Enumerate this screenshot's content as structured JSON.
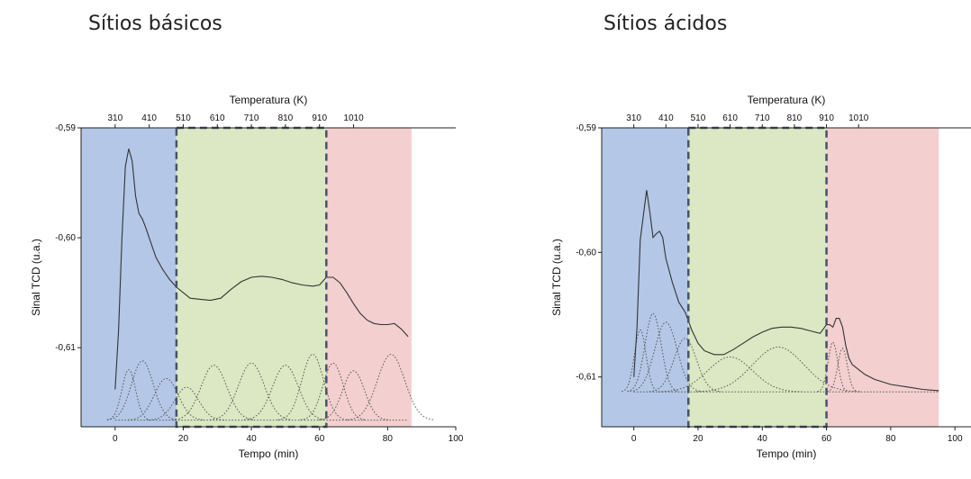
{
  "panels": {
    "left_title": "Sítios básicos",
    "right_title": "Sítios ácidos"
  },
  "colors": {
    "region_low": "#b4c7e7",
    "region_mid": "#dbe8c3",
    "region_high": "#f3cfcf",
    "dashed_box": "#44546a",
    "signal": "#333333",
    "fit": "#555555"
  },
  "chart_data": [
    {
      "type": "line",
      "title": "Sítios básicos",
      "xlabel": "Tempo (min)",
      "ylabel": "Sinal TCD (u.a.)",
      "top_xlabel": "Temperatura (K)",
      "xlim": [
        -10,
        100
      ],
      "ylim": [
        -0.6172,
        -0.59
      ],
      "x_ticks": [
        0,
        20,
        40,
        60,
        80,
        100
      ],
      "x_tick_labels": [
        "0",
        "20",
        "40",
        "60",
        "80",
        "100"
      ],
      "y_ticks": [
        -0.59,
        -0.6,
        -0.61
      ],
      "y_tick_labels": [
        "-0,59",
        "-0,60",
        "-0,61"
      ],
      "top_ticks": [
        0,
        10,
        20,
        30,
        40,
        50,
        60,
        70,
        80
      ],
      "top_tick_labels": [
        "310",
        "410",
        "510",
        "610",
        "710",
        "810",
        "910",
        "1010"
      ],
      "top_tick_positions": [
        0,
        10,
        20,
        30,
        40,
        50,
        60,
        70
      ],
      "regions": [
        {
          "x0": -10,
          "x1": 18,
          "color": "low"
        },
        {
          "x0": 18,
          "x1": 62,
          "color": "mid",
          "dashed": true
        },
        {
          "x0": 62,
          "x1": 87,
          "color": "high"
        }
      ],
      "baseline": -0.6166,
      "series": [
        {
          "kind": "signal",
          "x": [
            0,
            1,
            2,
            3,
            4,
            5,
            6,
            7,
            8,
            9,
            10,
            12,
            14,
            16,
            18,
            20,
            22,
            25,
            28,
            31,
            34,
            37,
            40,
            43,
            46,
            49,
            52,
            55,
            58,
            60,
            62,
            64,
            66,
            68,
            70,
            72,
            74,
            76,
            78,
            80,
            82,
            84,
            86
          ],
          "y": [
            -0.6138,
            -0.6085,
            -0.6,
            -0.5935,
            -0.5919,
            -0.593,
            -0.5962,
            -0.5978,
            -0.5983,
            -0.5991,
            -0.6,
            -0.6018,
            -0.6029,
            -0.6038,
            -0.6045,
            -0.605,
            -0.6055,
            -0.6056,
            -0.6057,
            -0.6055,
            -0.6047,
            -0.604,
            -0.6036,
            -0.6035,
            -0.6036,
            -0.6038,
            -0.6041,
            -0.6043,
            -0.6044,
            -0.6043,
            -0.6036,
            -0.6036,
            -0.6041,
            -0.605,
            -0.606,
            -0.6069,
            -0.6075,
            -0.6078,
            -0.6079,
            -0.6079,
            -0.6078,
            -0.6083,
            -0.609
          ]
        }
      ],
      "gaussians": [
        {
          "center": 4,
          "sigma": 2.0,
          "height": 0.0046
        },
        {
          "center": 8,
          "sigma": 3.2,
          "height": 0.0054
        },
        {
          "center": 15,
          "sigma": 3.5,
          "height": 0.0038
        },
        {
          "center": 21,
          "sigma": 3.5,
          "height": 0.003
        },
        {
          "center": 29,
          "sigma": 3.8,
          "height": 0.005
        },
        {
          "center": 40,
          "sigma": 3.8,
          "height": 0.0052
        },
        {
          "center": 50,
          "sigma": 3.8,
          "height": 0.005
        },
        {
          "center": 58,
          "sigma": 3.2,
          "height": 0.006
        },
        {
          "center": 64,
          "sigma": 3.0,
          "height": 0.0052
        },
        {
          "center": 70,
          "sigma": 3.2,
          "height": 0.0045
        },
        {
          "center": 81,
          "sigma": 4.0,
          "height": 0.006
        }
      ]
    },
    {
      "type": "line",
      "title": "Sítios ácidos",
      "xlabel": "Tempo (min)",
      "ylabel": "Sinal TCD (u.a.)",
      "top_xlabel": "Temperatura (K)",
      "xlim": [
        -10,
        105
      ],
      "ylim": [
        -0.614,
        -0.59
      ],
      "x_ticks": [
        0,
        20,
        40,
        60,
        80,
        100
      ],
      "x_tick_labels": [
        "0",
        "20",
        "40",
        "60",
        "80",
        "100"
      ],
      "y_ticks": [
        -0.59,
        -0.6,
        -0.61
      ],
      "y_tick_labels": [
        "-0,59",
        "-0,60",
        "-0,61"
      ],
      "top_tick_labels": [
        "310",
        "410",
        "510",
        "610",
        "710",
        "810",
        "910",
        "1010"
      ],
      "top_tick_positions": [
        0,
        10,
        20,
        30,
        40,
        50,
        60,
        70
      ],
      "regions": [
        {
          "x0": -10,
          "x1": 17,
          "color": "low"
        },
        {
          "x0": 17,
          "x1": 60,
          "color": "mid",
          "dashed": true
        },
        {
          "x0": 60,
          "x1": 95,
          "color": "high"
        }
      ],
      "baseline": -0.6112,
      "series": [
        {
          "kind": "signal",
          "x": [
            0,
            1,
            2,
            3,
            4,
            5,
            6,
            7,
            8,
            9,
            10,
            12,
            14,
            16,
            18,
            20,
            22,
            25,
            28,
            31,
            34,
            37,
            40,
            43,
            46,
            49,
            52,
            55,
            58,
            60,
            61,
            62,
            63,
            64,
            65,
            66,
            67,
            68,
            70,
            72,
            75,
            80,
            85,
            90,
            95
          ],
          "y": [
            -0.61,
            -0.606,
            -0.599,
            -0.597,
            -0.595,
            -0.5968,
            -0.5988,
            -0.5985,
            -0.5983,
            -0.5988,
            -0.6005,
            -0.6024,
            -0.604,
            -0.6048,
            -0.6062,
            -0.6073,
            -0.6079,
            -0.6082,
            -0.6082,
            -0.6078,
            -0.6073,
            -0.6068,
            -0.6064,
            -0.6061,
            -0.606,
            -0.606,
            -0.6061,
            -0.6063,
            -0.6065,
            -0.6058,
            -0.6058,
            -0.606,
            -0.6053,
            -0.6053,
            -0.606,
            -0.6075,
            -0.6085,
            -0.609,
            -0.6094,
            -0.6098,
            -0.6102,
            -0.6106,
            -0.6108,
            -0.611,
            -0.6111
          ]
        }
      ],
      "gaussians": [
        {
          "center": 2,
          "sigma": 1.8,
          "height": 0.005
        },
        {
          "center": 6,
          "sigma": 2.5,
          "height": 0.0063
        },
        {
          "center": 10,
          "sigma": 3.5,
          "height": 0.0056
        },
        {
          "center": 16,
          "sigma": 3.5,
          "height": 0.0043
        },
        {
          "center": 30,
          "sigma": 7.0,
          "height": 0.0028
        },
        {
          "center": 45,
          "sigma": 8.0,
          "height": 0.0036
        },
        {
          "center": 62,
          "sigma": 1.5,
          "height": 0.004
        },
        {
          "center": 65,
          "sigma": 1.5,
          "height": 0.0035
        }
      ]
    }
  ]
}
